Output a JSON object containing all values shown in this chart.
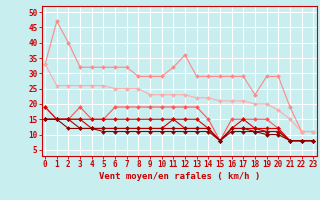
{
  "x": [
    0,
    1,
    2,
    3,
    4,
    5,
    6,
    7,
    8,
    9,
    10,
    11,
    12,
    13,
    14,
    15,
    16,
    17,
    18,
    19,
    20,
    21,
    22,
    23
  ],
  "series": [
    {
      "color": "#ff8888",
      "linewidth": 0.8,
      "marker": "D",
      "markersize": 2,
      "y": [
        33,
        47,
        40,
        32,
        32,
        32,
        32,
        32,
        29,
        29,
        29,
        32,
        36,
        29,
        29,
        29,
        29,
        29,
        23,
        29,
        29,
        19,
        11,
        11
      ]
    },
    {
      "color": "#ffaaaa",
      "linewidth": 0.8,
      "marker": "D",
      "markersize": 2,
      "y": [
        33,
        26,
        26,
        26,
        26,
        26,
        25,
        25,
        25,
        23,
        23,
        23,
        23,
        22,
        22,
        21,
        21,
        21,
        20,
        20,
        18,
        15,
        11,
        11
      ]
    },
    {
      "color": "#ff5555",
      "linewidth": 0.8,
      "marker": "D",
      "markersize": 2,
      "y": [
        19,
        15,
        15,
        19,
        15,
        15,
        19,
        19,
        19,
        19,
        19,
        19,
        19,
        19,
        15,
        8,
        15,
        15,
        15,
        15,
        12,
        8,
        8,
        8
      ]
    },
    {
      "color": "#dd0000",
      "linewidth": 0.8,
      "marker": "D",
      "markersize": 2,
      "y": [
        19,
        15,
        15,
        15,
        15,
        15,
        15,
        15,
        15,
        15,
        15,
        15,
        15,
        15,
        12,
        8,
        12,
        15,
        12,
        12,
        12,
        8,
        8,
        8
      ]
    },
    {
      "color": "#cc0000",
      "linewidth": 0.8,
      "marker": "D",
      "markersize": 2,
      "y": [
        15,
        15,
        15,
        15,
        12,
        12,
        12,
        12,
        12,
        12,
        12,
        15,
        12,
        12,
        12,
        8,
        12,
        12,
        12,
        11,
        11,
        8,
        8,
        8
      ]
    },
    {
      "color": "#aa0000",
      "linewidth": 0.8,
      "marker": "D",
      "markersize": 2,
      "y": [
        15,
        15,
        15,
        12,
        12,
        12,
        12,
        12,
        12,
        12,
        12,
        12,
        12,
        12,
        12,
        8,
        12,
        12,
        11,
        11,
        11,
        8,
        8,
        8
      ]
    },
    {
      "color": "#880000",
      "linewidth": 0.8,
      "marker": "D",
      "markersize": 2,
      "y": [
        15,
        15,
        12,
        12,
        12,
        11,
        11,
        11,
        11,
        11,
        11,
        11,
        11,
        11,
        11,
        8,
        11,
        11,
        11,
        10,
        10,
        8,
        8,
        8
      ]
    }
  ],
  "xlim": [
    -0.3,
    23.3
  ],
  "ylim": [
    3,
    52
  ],
  "yticks": [
    5,
    10,
    15,
    20,
    25,
    30,
    35,
    40,
    45,
    50
  ],
  "xticks": [
    0,
    1,
    2,
    3,
    4,
    5,
    6,
    7,
    8,
    9,
    10,
    11,
    12,
    13,
    14,
    15,
    16,
    17,
    18,
    19,
    20,
    21,
    22,
    23
  ],
  "xlabel": "Vent moyen/en rafales ( km/h )",
  "background_color": "#c8eef0",
  "grid_color": "#ffffff",
  "tick_color": "#cc0000",
  "label_color": "#cc0000",
  "xlabel_fontsize": 6.5,
  "tick_fontsize": 5.5
}
